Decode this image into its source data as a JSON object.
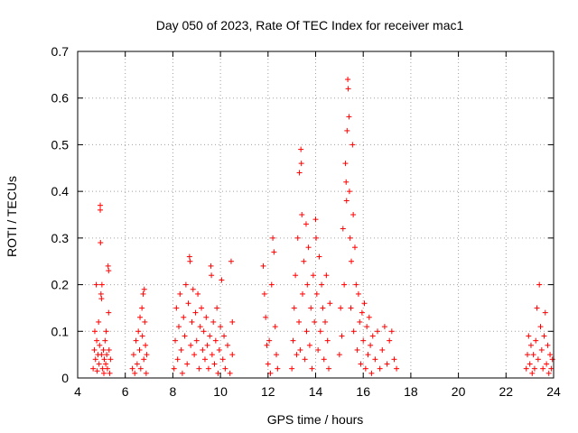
{
  "chart_data": {
    "type": "scatter",
    "title": "Day 050 of 2023, Rate Of TEC Index for receiver mac1",
    "xlabel": "GPS time / hours",
    "ylabel": "ROTI / TECUs",
    "xlim": [
      4,
      24
    ],
    "ylim": [
      0,
      0.7
    ],
    "x_ticks": [
      4,
      6,
      8,
      10,
      12,
      14,
      16,
      18,
      20,
      22,
      24
    ],
    "x_tick_labels": [
      "4",
      "6",
      "8",
      "10",
      "12",
      "14",
      "16",
      "18",
      "20",
      "22",
      "24"
    ],
    "y_ticks": [
      0,
      0.1,
      0.2,
      0.3,
      0.4,
      0.5,
      0.6,
      0.7
    ],
    "y_tick_labels": [
      "0",
      "0.1",
      "0.2",
      "0.3",
      "0.4",
      "0.5",
      "0.6",
      "0.7"
    ],
    "grid": true,
    "marker": "+",
    "color": "#ff0000",
    "series": [
      {
        "name": "ROTI",
        "points": [
          [
            4.65,
            0.02
          ],
          [
            4.7,
            0.06
          ],
          [
            4.72,
            0.1
          ],
          [
            4.75,
            0.04
          ],
          [
            4.78,
            0.2
          ],
          [
            4.8,
            0.08
          ],
          [
            4.82,
            0.015
          ],
          [
            4.85,
            0.05
          ],
          [
            4.88,
            0.12
          ],
          [
            4.9,
            0.03
          ],
          [
            4.92,
            0.07
          ],
          [
            4.95,
            0.36
          ],
          [
            4.95,
            0.37
          ],
          [
            4.96,
            0.29
          ],
          [
            4.98,
            0.18
          ],
          [
            5.0,
            0.17
          ],
          [
            5.0,
            0.05
          ],
          [
            5.02,
            0.2
          ],
          [
            5.05,
            0.02
          ],
          [
            5.08,
            0.06
          ],
          [
            5.1,
            0.01
          ],
          [
            5.12,
            0.04
          ],
          [
            5.15,
            0.08
          ],
          [
            5.18,
            0.03
          ],
          [
            5.2,
            0.1
          ],
          [
            5.22,
            0.05
          ],
          [
            5.25,
            0.02
          ],
          [
            5.28,
            0.24
          ],
          [
            5.3,
            0.23
          ],
          [
            5.3,
            0.14
          ],
          [
            5.32,
            0.06
          ],
          [
            5.35,
            0.01
          ],
          [
            5.38,
            0.04
          ],
          [
            6.3,
            0.02
          ],
          [
            6.35,
            0.05
          ],
          [
            6.4,
            0.01
          ],
          [
            6.45,
            0.08
          ],
          [
            6.5,
            0.03
          ],
          [
            6.55,
            0.1
          ],
          [
            6.6,
            0.06
          ],
          [
            6.62,
            0.13
          ],
          [
            6.65,
            0.02
          ],
          [
            6.7,
            0.15
          ],
          [
            6.72,
            0.09
          ],
          [
            6.75,
            0.18
          ],
          [
            6.78,
            0.04
          ],
          [
            6.8,
            0.19
          ],
          [
            6.82,
            0.12
          ],
          [
            6.85,
            0.07
          ],
          [
            6.88,
            0.01
          ],
          [
            6.9,
            0.05
          ],
          [
            8.05,
            0.02
          ],
          [
            8.1,
            0.08
          ],
          [
            8.15,
            0.15
          ],
          [
            8.2,
            0.04
          ],
          [
            8.25,
            0.11
          ],
          [
            8.3,
            0.18
          ],
          [
            8.35,
            0.06
          ],
          [
            8.4,
            0.01
          ],
          [
            8.45,
            0.13
          ],
          [
            8.5,
            0.09
          ],
          [
            8.55,
            0.2
          ],
          [
            8.6,
            0.03
          ],
          [
            8.65,
            0.16
          ],
          [
            8.7,
            0.26
          ],
          [
            8.72,
            0.25
          ],
          [
            8.75,
            0.07
          ],
          [
            8.8,
            0.12
          ],
          [
            8.85,
            0.19
          ],
          [
            8.9,
            0.05
          ],
          [
            8.95,
            0.14
          ],
          [
            9.0,
            0.08
          ],
          [
            9.05,
            0.18
          ],
          [
            9.1,
            0.02
          ],
          [
            9.15,
            0.11
          ],
          [
            9.2,
            0.15
          ],
          [
            9.25,
            0.06
          ],
          [
            9.3,
            0.1
          ],
          [
            9.35,
            0.04
          ],
          [
            9.4,
            0.13
          ],
          [
            9.45,
            0.07
          ],
          [
            9.5,
            0.02
          ],
          [
            9.55,
            0.09
          ],
          [
            9.6,
            0.24
          ],
          [
            9.62,
            0.22
          ],
          [
            9.65,
            0.05
          ],
          [
            9.7,
            0.12
          ],
          [
            9.75,
            0.03
          ],
          [
            9.8,
            0.08
          ],
          [
            9.85,
            0.15
          ],
          [
            9.9,
            0.01
          ],
          [
            9.95,
            0.06
          ],
          [
            10.0,
            0.11
          ],
          [
            10.05,
            0.21
          ],
          [
            10.1,
            0.04
          ],
          [
            10.15,
            0.09
          ],
          [
            10.2,
            0.02
          ],
          [
            10.3,
            0.07
          ],
          [
            10.4,
            0.01
          ],
          [
            10.45,
            0.25
          ],
          [
            10.5,
            0.05
          ],
          [
            10.5,
            0.12
          ],
          [
            11.8,
            0.24
          ],
          [
            11.85,
            0.18
          ],
          [
            11.9,
            0.13
          ],
          [
            11.95,
            0.07
          ],
          [
            12.0,
            0.03
          ],
          [
            12.05,
            0.08
          ],
          [
            12.1,
            0.01
          ],
          [
            12.15,
            0.2
          ],
          [
            12.2,
            0.3
          ],
          [
            12.25,
            0.27
          ],
          [
            12.3,
            0.11
          ],
          [
            12.35,
            0.05
          ],
          [
            12.4,
            0.02
          ],
          [
            13.0,
            0.02
          ],
          [
            13.05,
            0.08
          ],
          [
            13.1,
            0.15
          ],
          [
            13.15,
            0.22
          ],
          [
            13.2,
            0.05
          ],
          [
            13.25,
            0.3
          ],
          [
            13.3,
            0.12
          ],
          [
            13.32,
            0.44
          ],
          [
            13.35,
            0.06
          ],
          [
            13.38,
            0.49
          ],
          [
            13.4,
            0.46
          ],
          [
            13.42,
            0.35
          ],
          [
            13.45,
            0.18
          ],
          [
            13.5,
            0.25
          ],
          [
            13.55,
            0.04
          ],
          [
            13.6,
            0.33
          ],
          [
            13.62,
            0.1
          ],
          [
            13.65,
            0.2
          ],
          [
            13.7,
            0.28
          ],
          [
            13.75,
            0.07
          ],
          [
            13.8,
            0.15
          ],
          [
            13.85,
            0.02
          ],
          [
            13.9,
            0.22
          ],
          [
            13.95,
            0.12
          ],
          [
            14.0,
            0.34
          ],
          [
            14.02,
            0.3
          ],
          [
            14.05,
            0.18
          ],
          [
            14.1,
            0.06
          ],
          [
            14.15,
            0.26
          ],
          [
            14.2,
            0.1
          ],
          [
            14.25,
            0.2
          ],
          [
            14.3,
            0.15
          ],
          [
            14.35,
            0.04
          ],
          [
            14.4,
            0.12
          ],
          [
            14.45,
            0.22
          ],
          [
            14.5,
            0.08
          ],
          [
            14.55,
            0.02
          ],
          [
            14.6,
            0.16
          ],
          [
            15.0,
            0.05
          ],
          [
            15.05,
            0.15
          ],
          [
            15.1,
            0.09
          ],
          [
            15.15,
            0.32
          ],
          [
            15.2,
            0.2
          ],
          [
            15.25,
            0.46
          ],
          [
            15.28,
            0.42
          ],
          [
            15.3,
            0.38
          ],
          [
            15.32,
            0.53
          ],
          [
            15.35,
            0.64
          ],
          [
            15.37,
            0.62
          ],
          [
            15.4,
            0.56
          ],
          [
            15.42,
            0.4
          ],
          [
            15.45,
            0.3
          ],
          [
            15.48,
            0.15
          ],
          [
            15.5,
            0.25
          ],
          [
            15.55,
            0.5
          ],
          [
            15.58,
            0.35
          ],
          [
            15.6,
            0.1
          ],
          [
            15.65,
            0.28
          ],
          [
            15.7,
            0.2
          ],
          [
            15.75,
            0.06
          ],
          [
            15.8,
            0.18
          ],
          [
            15.85,
            0.12
          ],
          [
            15.9,
            0.03
          ],
          [
            15.95,
            0.14
          ],
          [
            16.0,
            0.08
          ],
          [
            16.05,
            0.16
          ],
          [
            16.1,
            0.02
          ],
          [
            16.15,
            0.11
          ],
          [
            16.2,
            0.05
          ],
          [
            16.25,
            0.13
          ],
          [
            16.3,
            0.07
          ],
          [
            16.35,
            0.01
          ],
          [
            16.4,
            0.09
          ],
          [
            16.5,
            0.04
          ],
          [
            16.6,
            0.1
          ],
          [
            16.7,
            0.02
          ],
          [
            16.8,
            0.06
          ],
          [
            16.9,
            0.11
          ],
          [
            17.0,
            0.03
          ],
          [
            17.1,
            0.08
          ],
          [
            17.2,
            0.1
          ],
          [
            17.3,
            0.04
          ],
          [
            17.4,
            0.02
          ],
          [
            22.85,
            0.02
          ],
          [
            22.9,
            0.05
          ],
          [
            22.95,
            0.09
          ],
          [
            23.0,
            0.03
          ],
          [
            23.05,
            0.07
          ],
          [
            23.1,
            0.01
          ],
          [
            23.15,
            0.05
          ],
          [
            23.2,
            0.02
          ],
          [
            23.25,
            0.08
          ],
          [
            23.3,
            0.15
          ],
          [
            23.35,
            0.04
          ],
          [
            23.4,
            0.2
          ],
          [
            23.45,
            0.11
          ],
          [
            23.5,
            0.06
          ],
          [
            23.55,
            0.02
          ],
          [
            23.6,
            0.09
          ],
          [
            23.65,
            0.14
          ],
          [
            23.7,
            0.03
          ],
          [
            23.75,
            0.07
          ],
          [
            23.8,
            0.01
          ],
          [
            23.85,
            0.05
          ],
          [
            23.9,
            0.02
          ],
          [
            23.95,
            0.04
          ]
        ]
      }
    ]
  }
}
